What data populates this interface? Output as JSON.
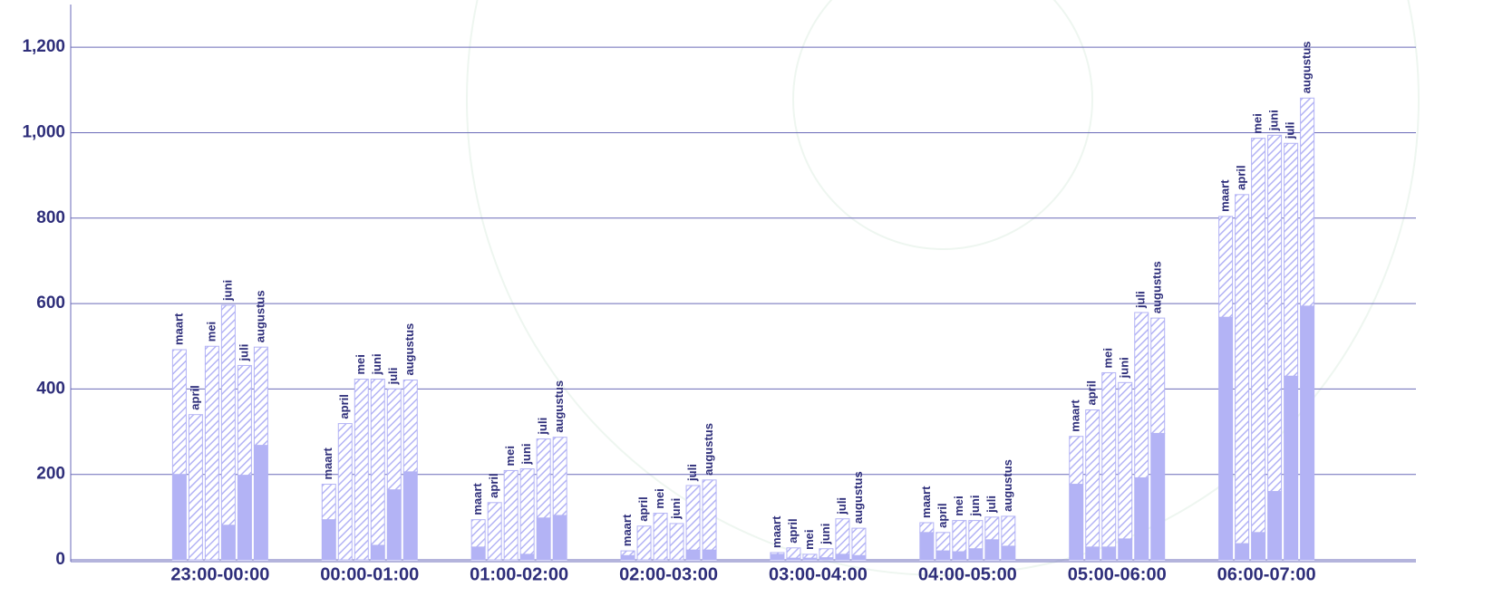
{
  "chart_data": {
    "type": "grouped_stacked_bar",
    "categories": [
      "23:00-00:00",
      "00:00-01:00",
      "01:00-02:00",
      "02:00-03:00",
      "03:00-04:00",
      "04:00-05:00",
      "05:00-06:00",
      "06:00-07:00"
    ],
    "bar_labels": [
      "maart",
      "april",
      "mei",
      "juni",
      "juli",
      "augustus"
    ],
    "series": [
      {
        "color": "#b3b3f5",
        "pattern": "solid",
        "values": [
          [
            200,
            0,
            0,
            81,
            198,
            268
          ],
          [
            94,
            0,
            0,
            34,
            164,
            206
          ],
          [
            30,
            0,
            0,
            13,
            98,
            104
          ],
          [
            10,
            0,
            0,
            0,
            23,
            23
          ],
          [
            13,
            4,
            4,
            5,
            13,
            10
          ],
          [
            64,
            21,
            19,
            26,
            47,
            32
          ],
          [
            177,
            30,
            30,
            49,
            192,
            296
          ],
          [
            568,
            38,
            64,
            160,
            430,
            594
          ]
        ]
      },
      {
        "color": "#b3b3f5",
        "pattern": "hatch",
        "values": [
          [
            292,
            340,
            500,
            515,
            257,
            230
          ],
          [
            83,
            319,
            423,
            389,
            236,
            215
          ],
          [
            64,
            134,
            209,
            200,
            185,
            183
          ],
          [
            11,
            79,
            109,
            85,
            151,
            164
          ],
          [
            4,
            24,
            9,
            21,
            83,
            64
          ],
          [
            23,
            43,
            73,
            66,
            53,
            70
          ],
          [
            112,
            321,
            408,
            366,
            387,
            270
          ],
          [
            236,
            817,
            923,
            834,
            545,
            487
          ]
        ]
      }
    ],
    "ylim": [
      0,
      1300
    ],
    "yticks": [
      0,
      200,
      400,
      600,
      800,
      {
        "value": 1000,
        "label": "1,000"
      },
      {
        "value": 1200,
        "label": "1,200"
      }
    ],
    "grid": true
  }
}
